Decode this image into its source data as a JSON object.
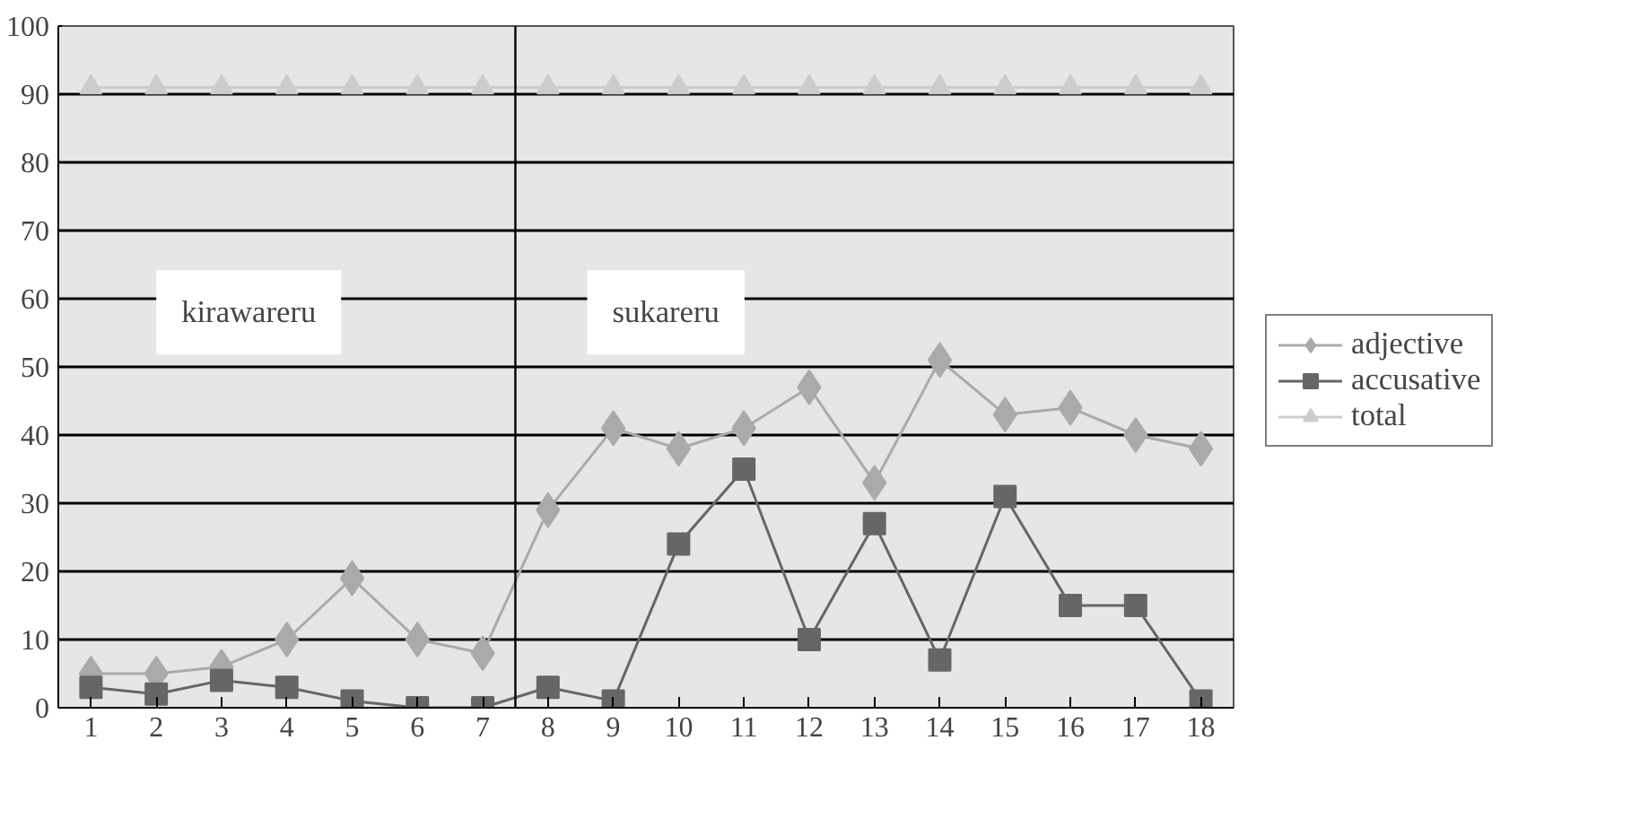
{
  "chart_data": {
    "type": "line",
    "x": [
      1,
      2,
      3,
      4,
      5,
      6,
      7,
      8,
      9,
      10,
      11,
      12,
      13,
      14,
      15,
      16,
      17,
      18
    ],
    "series": [
      {
        "name": "adjective",
        "color": "#aaaaaa",
        "marker": "diamond",
        "values": [
          5,
          5,
          6,
          10,
          19,
          10,
          8,
          29,
          41,
          38,
          41,
          47,
          33,
          51,
          43,
          44,
          40,
          38
        ]
      },
      {
        "name": "accusative",
        "color": "#666666",
        "marker": "square",
        "values": [
          3,
          2,
          4,
          3,
          1,
          0,
          0,
          3,
          1,
          24,
          35,
          10,
          27,
          7,
          31,
          15,
          15,
          1
        ]
      },
      {
        "name": "total",
        "color": "#cccccc",
        "marker": "triangle",
        "values": [
          91,
          91,
          91,
          91,
          91,
          91,
          91,
          91,
          91,
          91,
          91,
          91,
          91,
          91,
          91,
          91,
          91,
          91
        ]
      }
    ],
    "xlim": [
      0.5,
      18.5
    ],
    "xticks": [
      1,
      2,
      3,
      4,
      5,
      6,
      7,
      8,
      9,
      10,
      11,
      12,
      13,
      14,
      15,
      16,
      17,
      18
    ],
    "ylim": [
      0,
      100
    ],
    "yticks": [
      0,
      10,
      20,
      30,
      40,
      50,
      60,
      70,
      80,
      90,
      100
    ],
    "ref_lines": [
      {
        "axis": "x",
        "value": 7.5,
        "color": "#000000"
      }
    ],
    "annotations": [
      "kirawareru",
      "sukareru"
    ],
    "grid": "y",
    "legend": "right"
  }
}
